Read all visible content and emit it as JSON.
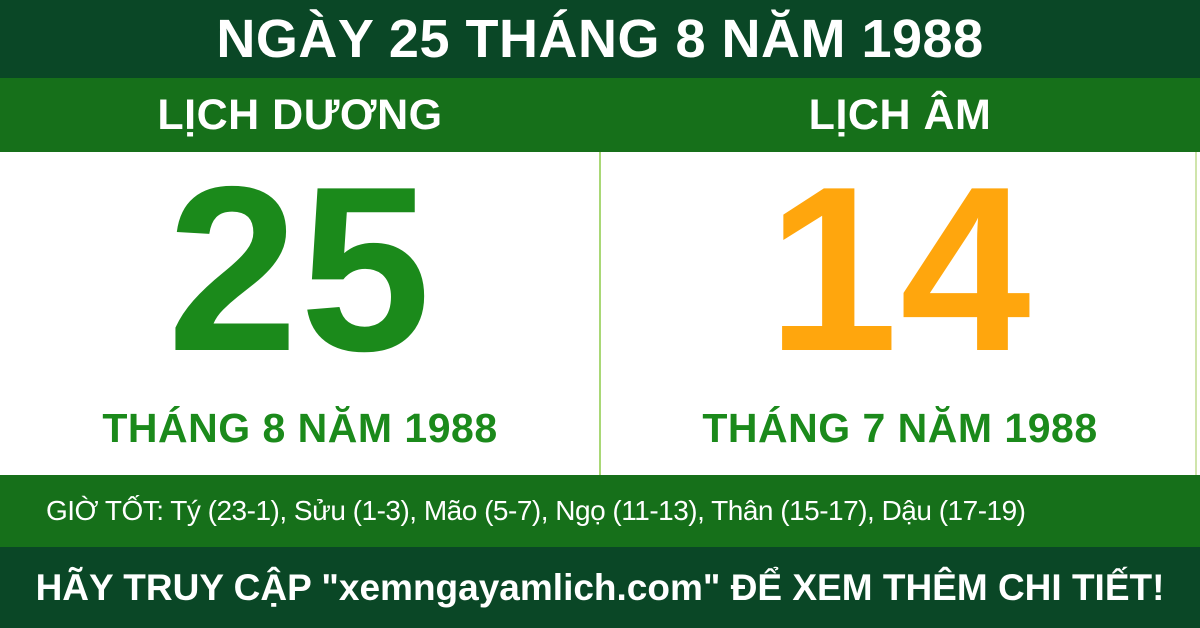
{
  "colors": {
    "dark_green": "#0a4726",
    "band_green": "#16701a",
    "day_green": "#1b8a1b",
    "day_orange": "#ffa60d",
    "divider_green": "#a9d876",
    "text_white": "#ffffff"
  },
  "title_bar": {
    "text": "NGÀY 25 THÁNG 8 NĂM 1988"
  },
  "calendar": {
    "solar": {
      "header": "LỊCH DƯƠNG",
      "day": "25",
      "month_year": "THÁNG 8 NĂM 1988"
    },
    "lunar": {
      "header": "LỊCH ÂM",
      "day": "14",
      "month_year": "THÁNG 7 NĂM 1988"
    }
  },
  "good_hours": {
    "text": "GIỜ TỐT: Tý (23-1), Sửu (1-3), Mão (5-7), Ngọ (11-13), Thân (15-17), Dậu (17-19)"
  },
  "footer": {
    "text": "HÃY TRUY CẬP \"xemngayamlich.com\" ĐỂ XEM THÊM CHI TIẾT!"
  }
}
